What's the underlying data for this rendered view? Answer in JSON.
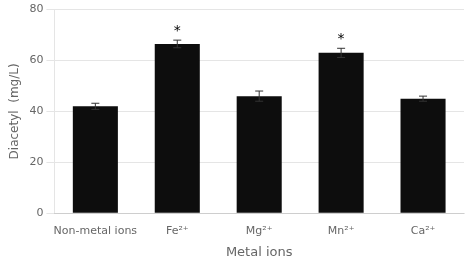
{
  "chart_data": {
    "type": "bar",
    "categories": [
      "Non-metal ions",
      "Fe²⁺",
      "Mg²⁺",
      "Mn²⁺",
      "Ca²⁺"
    ],
    "values": [
      42.0,
      66.5,
      46.0,
      63.0,
      45.0
    ],
    "errors": [
      1.2,
      1.5,
      2.0,
      1.8,
      1.0
    ],
    "color": "#0d0d0d",
    "ylim": [
      0,
      80
    ],
    "yticks": [
      0,
      20,
      40,
      60,
      80
    ],
    "ylabel": "Diacetyl  (mg/L)",
    "xlabel": "Metal ions",
    "grid": true,
    "annotations": [
      {
        "text": "*",
        "x": "Fe²⁺"
      },
      {
        "text": "*",
        "x": "Mn²⁺"
      }
    ]
  }
}
